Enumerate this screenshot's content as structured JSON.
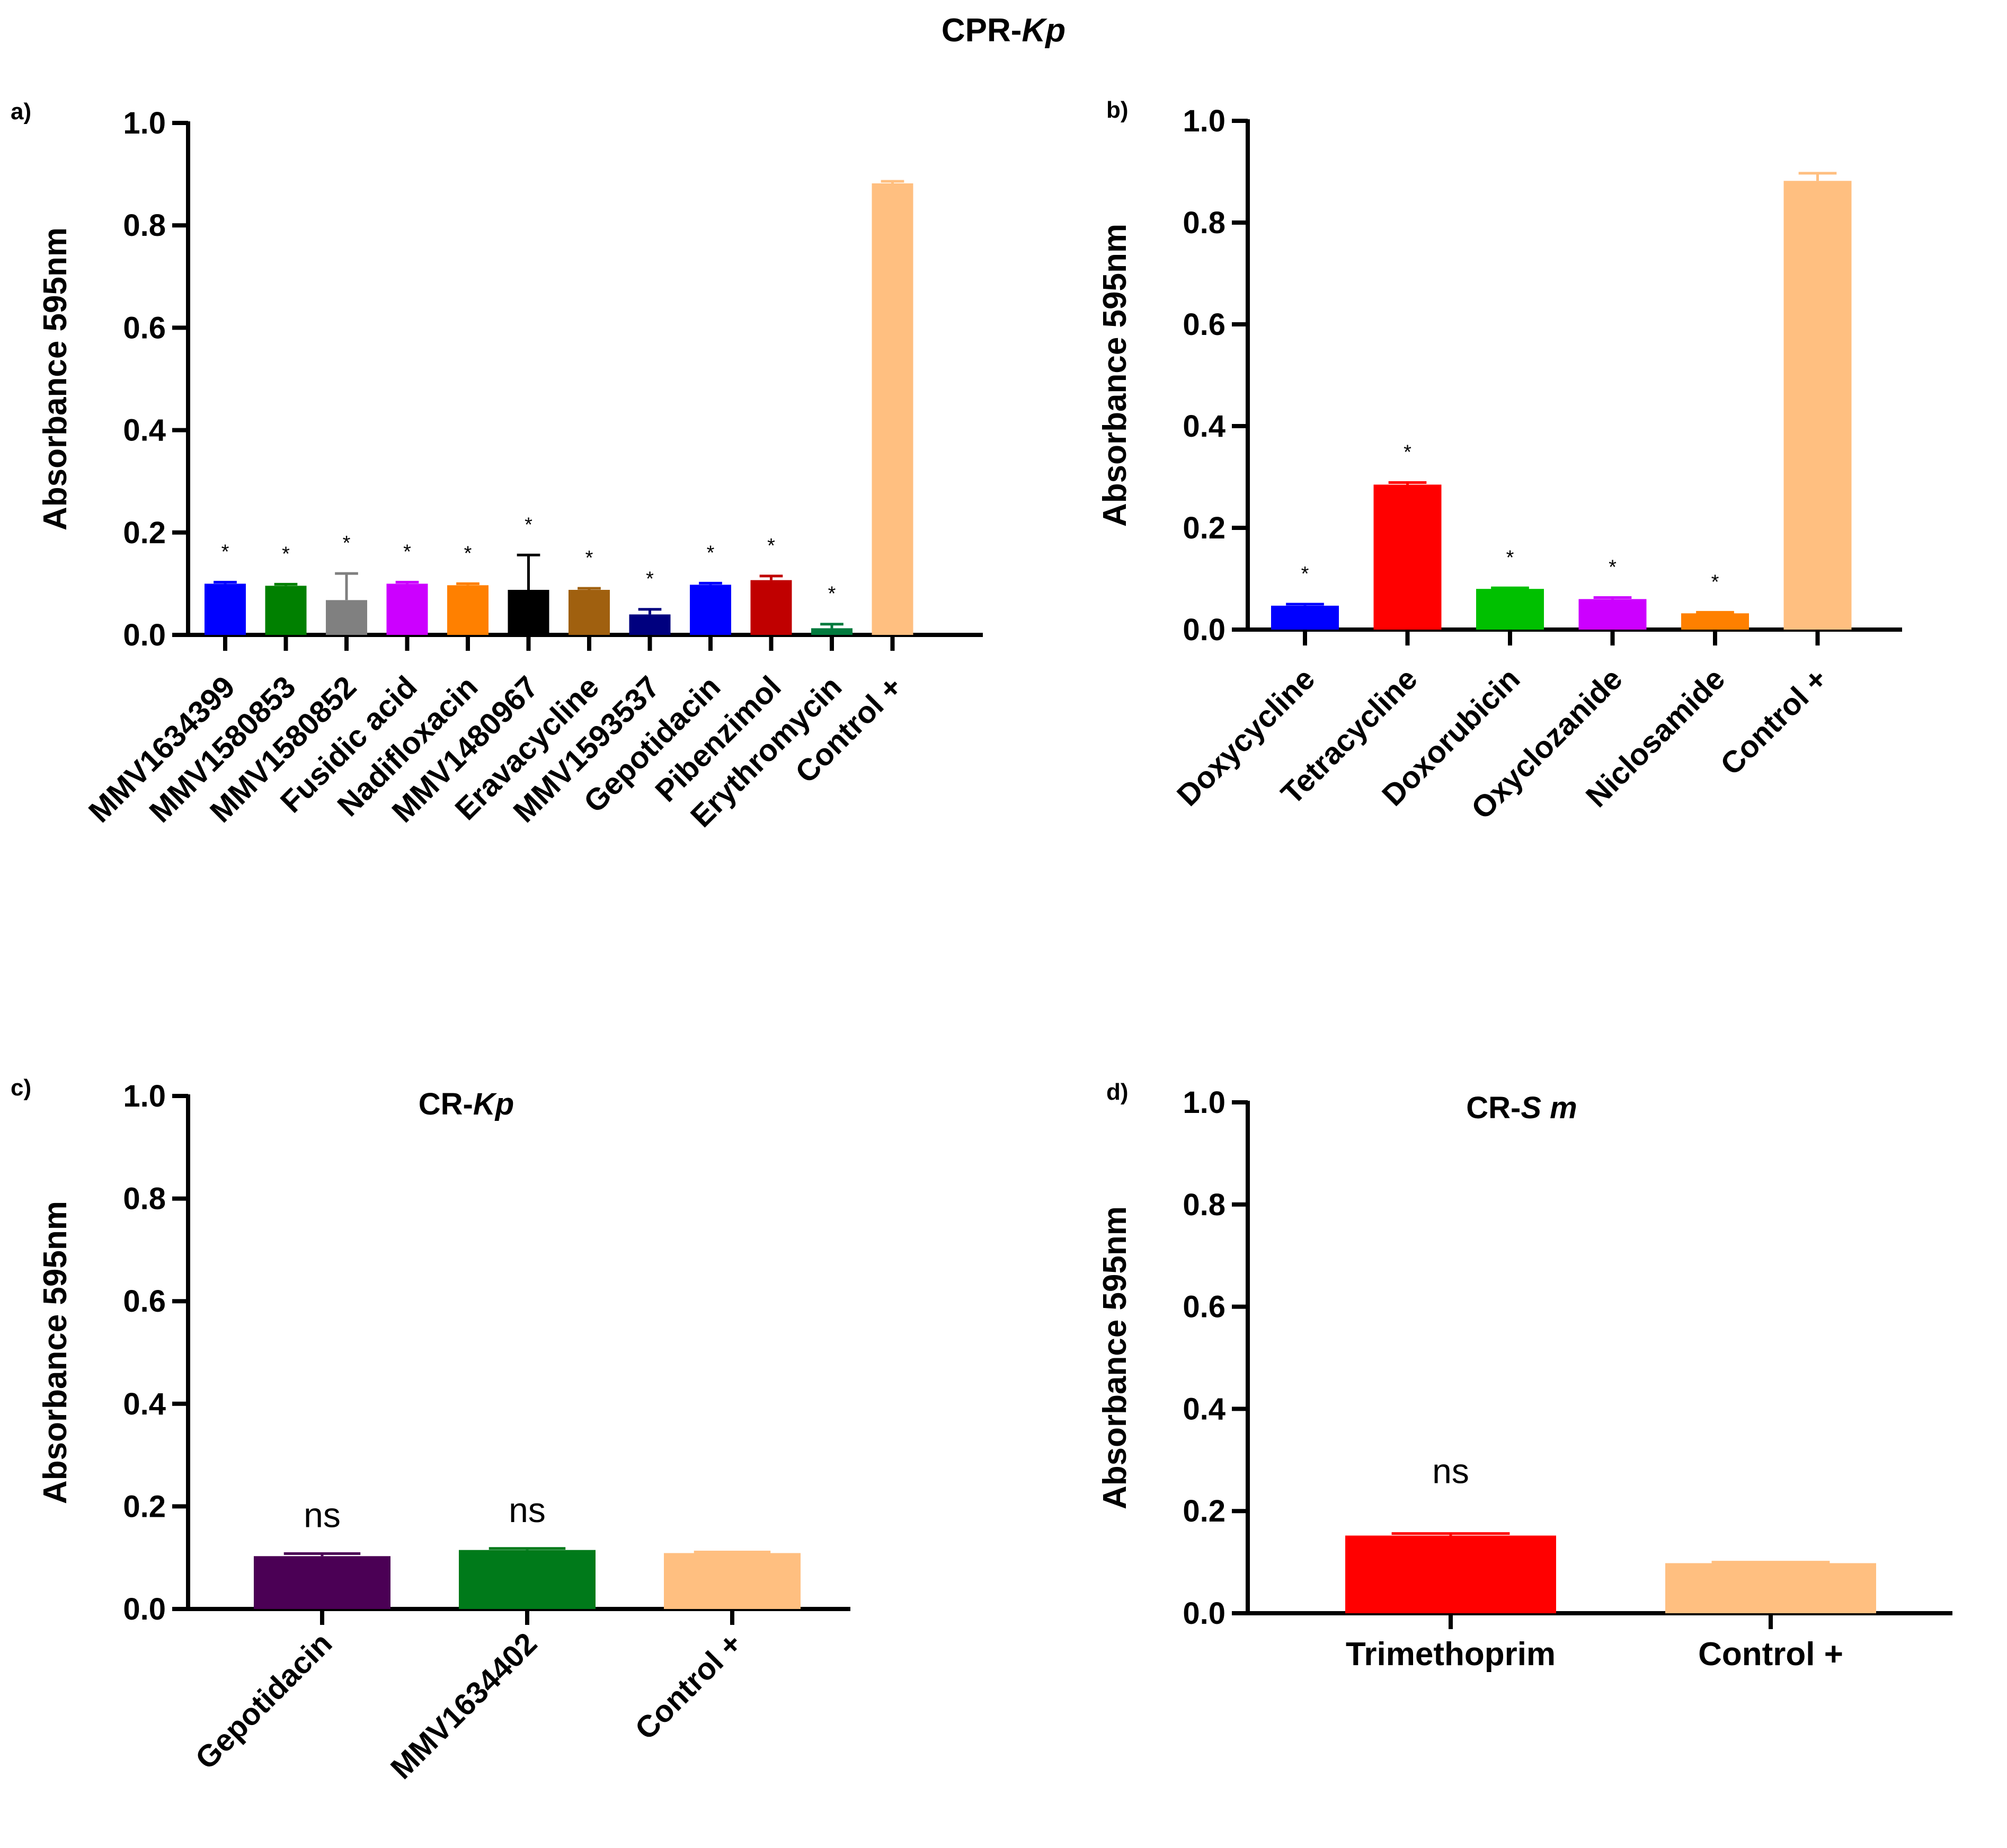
{
  "figure": {
    "title_prefix": "CPR-",
    "title_italic": "Kp"
  },
  "chart_data": [
    {
      "panel": "a)",
      "type": "bar",
      "title_prefix": "",
      "title_italic": "",
      "ylabel": "Absorbance 595nm",
      "ylim": [
        0,
        1.0
      ],
      "yticks": [
        "0.0",
        "0.2",
        "0.4",
        "0.6",
        "0.8",
        "1.0"
      ],
      "categories": [
        "MMV1634399",
        "MMV1580853",
        "MMV1580852",
        "Fusidic acid",
        "Nadifloxacin",
        "MMV1480967",
        "Eravacycline",
        "MMV1593537",
        "Gepotidacin",
        "Pibenzimol",
        "Erythromycin",
        "Control +"
      ],
      "values": [
        0.1,
        0.096,
        0.068,
        0.1,
        0.097,
        0.088,
        0.088,
        0.04,
        0.098,
        0.107,
        0.013,
        0.882
      ],
      "errors": [
        0.003,
        0.003,
        0.052,
        0.003,
        0.003,
        0.068,
        0.003,
        0.01,
        0.003,
        0.008,
        0.008,
        0.004
      ],
      "colors": [
        "#0000ff",
        "#008000",
        "#808080",
        "#cc00ff",
        "#ff8000",
        "#000000",
        "#a0600f",
        "#00007f",
        "#0000ff",
        "#c00000",
        "#007a3d",
        "#ffbf80"
      ],
      "annotations": [
        "*",
        "*",
        "*",
        "*",
        "*",
        "*",
        "*",
        "*",
        "*",
        "*",
        "*",
        ""
      ]
    },
    {
      "panel": "b)",
      "type": "bar",
      "title_prefix": "",
      "title_italic": "",
      "ylabel": "Absorbance 595nm",
      "ylim": [
        0,
        1.0
      ],
      "yticks": [
        "0.0",
        "0.2",
        "0.4",
        "0.6",
        "0.8",
        "1.0"
      ],
      "categories": [
        "Doxycycline",
        "Tetracycline",
        "Doxorubicin",
        "Oxyclozanide",
        "Niclosamide",
        "Control +"
      ],
      "values": [
        0.047,
        0.285,
        0.08,
        0.06,
        0.032,
        0.882
      ],
      "errors": [
        0.003,
        0.004,
        0.002,
        0.003,
        0.002,
        0.015
      ],
      "colors": [
        "#0000ff",
        "#ff0000",
        "#00c000",
        "#cc00ff",
        "#ff8000",
        "#ffbf80"
      ],
      "annotations": [
        "*",
        "*",
        "*",
        "*",
        "*",
        ""
      ]
    },
    {
      "panel": "c)",
      "type": "bar",
      "title_prefix": "CR-",
      "title_italic": "Kp",
      "ylabel": "Absorbance 595nm",
      "ylim": [
        0,
        1.0
      ],
      "yticks": [
        "0.0",
        "0.2",
        "0.4",
        "0.6",
        "0.8",
        "1.0"
      ],
      "categories": [
        "Gepotidacin",
        "MMV1634402",
        "Control +"
      ],
      "values": [
        0.103,
        0.115,
        0.109
      ],
      "errors": [
        0.005,
        0.003,
        0.002
      ],
      "colors": [
        "#4b0055",
        "#007a1a",
        "#ffbf80"
      ],
      "annotations": [
        "ns",
        "ns",
        ""
      ]
    },
    {
      "panel": "d)",
      "type": "bar",
      "title_prefix": "CR-",
      "title_italic": "S m",
      "ylabel": "Absorbance 595nm",
      "ylim": [
        0,
        1.0
      ],
      "yticks": [
        "0.0",
        "0.2",
        "0.4",
        "0.6",
        "0.8",
        "1.0"
      ],
      "categories": [
        "Trimethoprim",
        "Control +"
      ],
      "values": [
        0.152,
        0.098
      ],
      "errors": [
        0.004,
        0.002
      ],
      "colors": [
        "#ff0000",
        "#ffbf80"
      ],
      "annotations": [
        "ns",
        ""
      ]
    }
  ]
}
